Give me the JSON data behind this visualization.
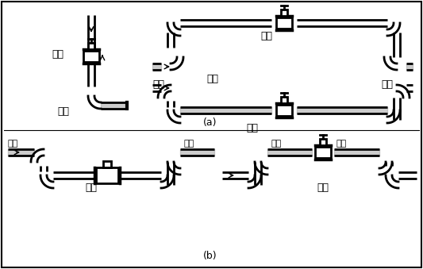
{
  "title_a": "(a)",
  "title_b": "(b)",
  "label_correct": "正确",
  "label_wrong": "错误",
  "label_liquid": "液体",
  "label_bubble": "气泡",
  "bg_color": "#ffffff",
  "pipe_color": "#000000",
  "pipe_lw": 2.0,
  "fill_color": "#aaaaaa"
}
